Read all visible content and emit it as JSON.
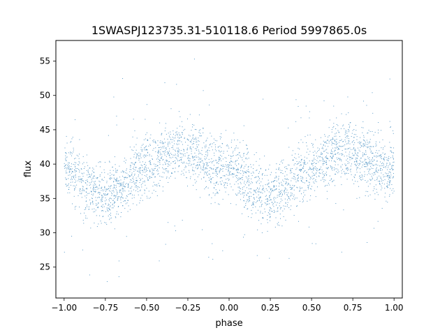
{
  "chart_data": {
    "type": "scatter",
    "title": "1SWASPJ123735.31-510118.6 Period 5997865.0s",
    "xlabel": "phase",
    "ylabel": "flux",
    "xlim": [
      -1.05,
      1.05
    ],
    "ylim": [
      20.5,
      58.0
    ],
    "xticks": [
      -1.0,
      -0.75,
      -0.5,
      -0.25,
      0.0,
      0.25,
      0.5,
      0.75,
      1.0
    ],
    "xtick_labels": [
      "−1.00",
      "−0.75",
      "−0.50",
      "−0.25",
      "0.00",
      "0.25",
      "0.50",
      "0.75",
      "1.00"
    ],
    "yticks": [
      25,
      30,
      35,
      40,
      45,
      50,
      55
    ],
    "ytick_labels": [
      "25",
      "30",
      "35",
      "40",
      "45",
      "50",
      "55"
    ],
    "grid": false,
    "legend": "none",
    "point_color": "#1f77b4",
    "series": [
      {
        "profile_phase": [
          0.0,
          0.05,
          0.1,
          0.15,
          0.2,
          0.25,
          0.3,
          0.35,
          0.4,
          0.45,
          0.5,
          0.55,
          0.6,
          0.65,
          0.7,
          0.75,
          0.8,
          0.85,
          0.9,
          0.95,
          1.0
        ],
        "profile_flux": [
          39.5,
          39.0,
          37.5,
          36.2,
          35.8,
          35.3,
          35.8,
          36.8,
          37.8,
          38.8,
          39.6,
          40.2,
          41.0,
          41.8,
          42.3,
          42.0,
          41.5,
          40.5,
          39.6,
          39.0,
          39.5
        ],
        "spread": 2.2,
        "range": [
          -1.0,
          1.0
        ]
      }
    ]
  }
}
